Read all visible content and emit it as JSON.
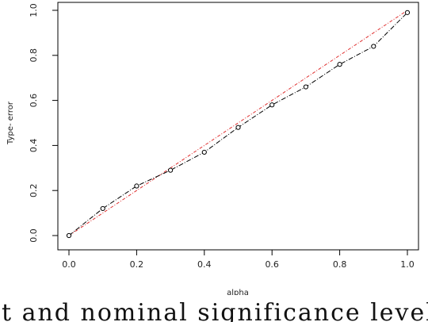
{
  "chart_data": {
    "type": "line",
    "title": "",
    "xlabel": "alpha",
    "ylabel": "Type- error",
    "xlim": [
      0,
      1
    ],
    "ylim": [
      0,
      1
    ],
    "x_ticks": [
      "0.0",
      "0.2",
      "0.4",
      "0.6",
      "0.8",
      "1.0"
    ],
    "y_ticks": [
      "0.0",
      "0.2",
      "0.4",
      "0.6",
      "0.8",
      "1.0"
    ],
    "grid": false,
    "legend": "none",
    "series": [
      {
        "style": "black dash-dot with open circles",
        "color": "#000000",
        "x": [
          0.0,
          0.1,
          0.2,
          0.3,
          0.4,
          0.5,
          0.6,
          0.7,
          0.8,
          0.9,
          1.0
        ],
        "y": [
          0.0,
          0.12,
          0.22,
          0.29,
          0.37,
          0.48,
          0.58,
          0.66,
          0.76,
          0.84,
          0.99
        ]
      },
      {
        "style": "red dash-dot reference line",
        "color": "#e03030",
        "x": [
          0.0,
          1.0
        ],
        "y": [
          0.0,
          1.0
        ]
      }
    ]
  },
  "caption_text": "t  and  nominal  significance  levels.  Th"
}
